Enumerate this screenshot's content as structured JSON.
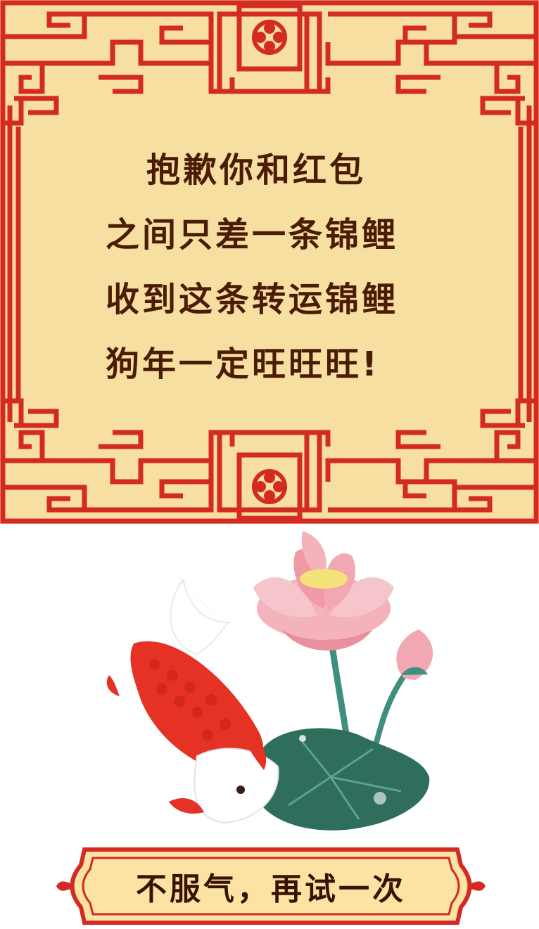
{
  "colors": {
    "card_background": "#f6dfa1",
    "lattice_red": "#d42a24",
    "text_dark": "#4a1c06",
    "button_fill": "#fbe3a3",
    "button_border": "#d42a24"
  },
  "message": {
    "line1": "抱歉你和红包",
    "line2": "之间只差一条锦鲤",
    "line3": "收到这条转运锦鲤",
    "line4": "狗年一定旺旺旺!"
  },
  "illustration": {
    "fish_icon": "koi-icon",
    "lotus_icon": "lotus-icon",
    "leaf_icon": "lotus-leaf-icon"
  },
  "button": {
    "label": "不服气，再试一次"
  }
}
